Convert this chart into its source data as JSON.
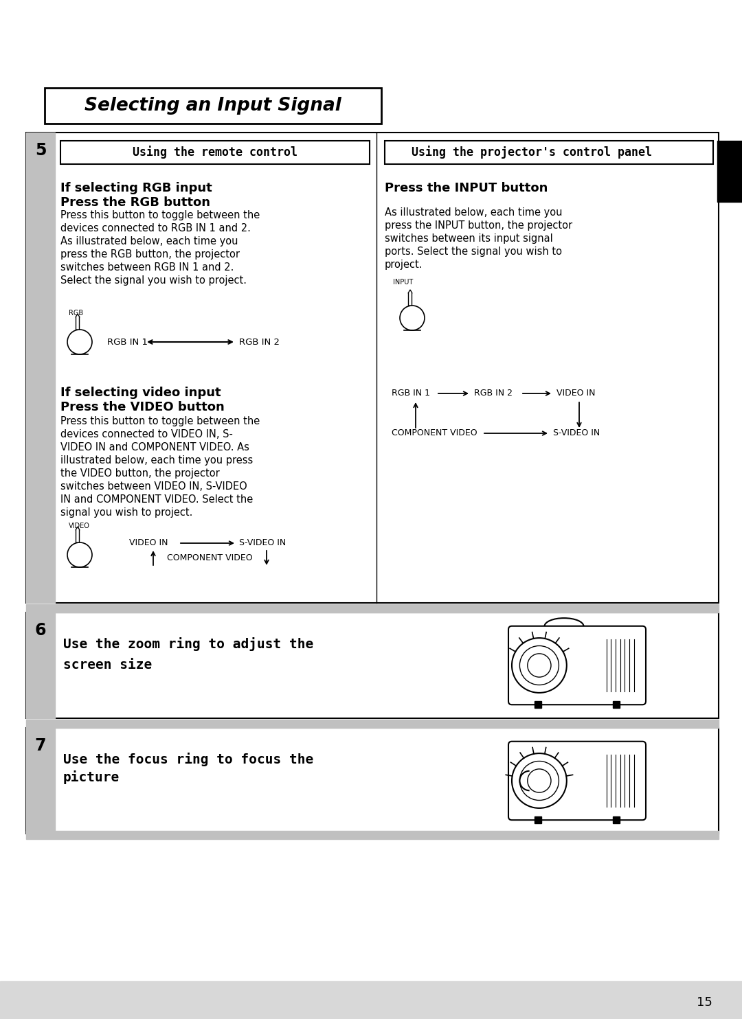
{
  "bg_color": "#ffffff",
  "title": "Selecting an Input Signal",
  "page_number": "15",
  "step5_label": "5",
  "step6_label": "6",
  "step7_label": "7",
  "remote_control_header": "Using the remote control",
  "projector_panel_header": "Using the projector's control panel",
  "rgb_section_title1": "If selecting RGB input",
  "rgb_section_title2": "Press the RGB button",
  "rgb_body": "Press this button to toggle between the\ndevices connected to RGB IN 1 and 2.\nAs illustrated below, each time you\npress the RGB button, the projector\nswitches between RGB IN 1 and 2.\nSelect the signal you wish to project.",
  "video_section_title1": "If selecting video input",
  "video_section_title2": "Press the VIDEO button",
  "video_body": "Press this button to toggle between the\ndevices connected to VIDEO IN, S-\nVIDEO IN and COMPONENT VIDEO. As\nillustrated below, each time you press\nthe VIDEO button, the projector\nswitches between VIDEO IN, S-VIDEO\nIN and COMPONENT VIDEO. Select the\nsignal you wish to project.",
  "input_section_title": "Press the INPUT button",
  "input_body": "As illustrated below, each time you\npress the INPUT button, the projector\nswitches between its input signal\nports. Select the signal you wish to\nproject.",
  "step6_text1": "Use the zoom ring to adjust the",
  "step6_text2": "screen size",
  "step7_text1": "Use the focus ring to focus the",
  "step7_text2": "picture",
  "gray_strip": "#c0c0c0",
  "light_gray": "#d8d8d8"
}
